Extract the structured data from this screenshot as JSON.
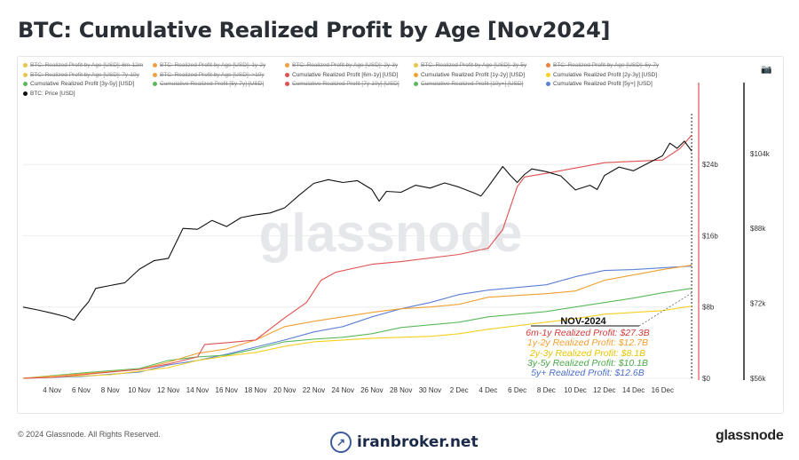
{
  "title": "BTC: Cumulative Realized Profit by Age [Nov2024]",
  "legend": [
    {
      "label": "BTC: Realized Profit by Age [USD]: 6m-12m",
      "color": "#e8c64a",
      "active": false
    },
    {
      "label": "BTC: Realized Profit by Age [USD]: 1y-2y",
      "color": "#f0a040",
      "active": false
    },
    {
      "label": "BTC: Realized Profit by Age [USD]: 2y-3y",
      "color": "#f0a040",
      "active": false
    },
    {
      "label": "BTC: Realized Profit by Age [USD]: 3y-5y",
      "color": "#e8c64a",
      "active": false
    },
    {
      "label": "BTC: Realized Profit by Age [USD]: 5y-7y",
      "color": "#f08040",
      "active": false
    },
    {
      "label": "BTC: Realized Profit by Age [USD]: 7y-10y",
      "color": "#e8c64a",
      "active": false
    },
    {
      "label": "BTC: Realized Profit by Age [USD]: >10y",
      "color": "#f0a040",
      "active": false
    },
    {
      "label": "Cumulative Realized Profit [6m-1y] [USD]",
      "color": "#e05050",
      "active": true
    },
    {
      "label": "Cumulative Realized Profit [1y-2y] [USD]",
      "color": "#f0a030",
      "active": true
    },
    {
      "label": "Cumulative Realized Profit [2y-3y] [USD]",
      "color": "#f5d020",
      "active": true
    },
    {
      "label": "Cumulative Realized Profit [3y-5y] [USD]",
      "color": "#5cb85c",
      "active": true
    },
    {
      "label": "Cumulative Realized Profit [5y-7y] [USD]",
      "color": "#5cb85c",
      "active": false
    },
    {
      "label": "Cumulative Realized Profit [7y-10y] [USD]",
      "color": "#e05050",
      "active": false
    },
    {
      "label": "Cumulative Realized Profit [10y+] [USD]",
      "color": "#5cb85c",
      "active": false
    },
    {
      "label": "Cumulative Realized Profit [5y+] [USD]",
      "color": "#5b7fd6",
      "active": true
    },
    {
      "label": "BTC: Price [USD]",
      "color": "#111111",
      "active": true
    }
  ],
  "annotation": {
    "title": "NOV-2024",
    "lines": [
      {
        "text": "6m-1y Realized Profit: $27.3B",
        "color": "#d33a3a"
      },
      {
        "text": "1y-2y Realized Profit: $12.7B",
        "color": "#f0a030"
      },
      {
        "text": "2y-3y Realized Profit: $8.1B",
        "color": "#e5c400"
      },
      {
        "text": "3y-5y Realized Profit: $10.1B",
        "color": "#4aa84a"
      },
      {
        "text": "5y+ Realized Profit: $12.6B",
        "color": "#4a6fc8"
      }
    ]
  },
  "footer": {
    "copyright": "© 2024 Glassnode. All Rights Reserved.",
    "brand": "iranbroker.net",
    "logo": "glassnode"
  },
  "watermark": "glassnode",
  "chart_data": {
    "type": "line",
    "x_tick_labels": [
      "4 Nov",
      "6 Nov",
      "8 Nov",
      "10 Nov",
      "12 Nov",
      "14 Nov",
      "16 Nov",
      "18 Nov",
      "20 Nov",
      "22 Nov",
      "24 Nov",
      "26 Nov",
      "28 Nov",
      "30 Nov",
      "2 Dec",
      "4 Dec",
      "6 Dec",
      "8 Dec",
      "10 Dec",
      "12 Dec",
      "14 Dec",
      "16 Dec"
    ],
    "x_days": [
      0,
      2,
      4,
      6,
      8,
      10,
      12,
      14,
      16,
      18,
      20,
      22,
      24,
      26,
      28,
      30,
      32,
      34,
      36,
      38,
      40,
      42
    ],
    "x_range": [
      -2,
      44.3
    ],
    "left_axis": {
      "ticks": [
        0,
        8,
        16,
        24
      ],
      "labels": [
        "$0",
        "$8b",
        "$16b",
        "$24b"
      ],
      "range": [
        0,
        30.5
      ]
    },
    "right_axis": {
      "ticks": [
        56,
        72,
        88,
        104
      ],
      "labels": [
        "$56k",
        "$72k",
        "$88k",
        "$104k"
      ],
      "range": [
        56,
        114
      ]
    },
    "series": [
      {
        "name": "Cumulative Realized Profit [6m-1y] [USD]",
        "color": "#e05050",
        "axis": "left",
        "points": [
          [
            -2,
            0
          ],
          [
            0,
            0.1
          ],
          [
            2,
            0.4
          ],
          [
            4,
            0.7
          ],
          [
            6,
            1.0
          ],
          [
            8,
            1.6
          ],
          [
            10,
            2.4
          ],
          [
            10.5,
            3.8
          ],
          [
            12,
            4.0
          ],
          [
            14,
            4.3
          ],
          [
            16,
            6.8
          ],
          [
            17.5,
            8.5
          ],
          [
            18.5,
            11.0
          ],
          [
            19.5,
            11.9
          ],
          [
            22,
            12.8
          ],
          [
            24,
            13.1
          ],
          [
            28,
            13.9
          ],
          [
            30,
            14.6
          ],
          [
            31,
            16.7
          ],
          [
            32,
            21.5
          ],
          [
            32.5,
            22.6
          ],
          [
            34,
            23.0
          ],
          [
            36,
            23.6
          ],
          [
            38,
            24.2
          ],
          [
            42,
            24.5
          ],
          [
            43.2,
            25.8
          ],
          [
            44,
            27.3
          ]
        ]
      },
      {
        "name": "Cumulative Realized Profit [1y-2y] [USD]",
        "color": "#f0a030",
        "axis": "left",
        "points": [
          [
            -2,
            0
          ],
          [
            2,
            0.5
          ],
          [
            6,
            1.0
          ],
          [
            8,
            1.8
          ],
          [
            10,
            2.8
          ],
          [
            12,
            3.3
          ],
          [
            14,
            4.3
          ],
          [
            16,
            5.8
          ],
          [
            18,
            6.4
          ],
          [
            20,
            6.9
          ],
          [
            22,
            7.4
          ],
          [
            24,
            7.8
          ],
          [
            26,
            8.0
          ],
          [
            28,
            8.3
          ],
          [
            30,
            9.1
          ],
          [
            34,
            9.5
          ],
          [
            36,
            9.8
          ],
          [
            38,
            11.0
          ],
          [
            42,
            12.2
          ],
          [
            44,
            12.7
          ]
        ]
      },
      {
        "name": "Cumulative Realized Profit [2y-3y] [USD]",
        "color": "#f5d020",
        "axis": "left",
        "points": [
          [
            -2,
            0
          ],
          [
            4,
            0.4
          ],
          [
            8,
            1.2
          ],
          [
            10,
            2.0
          ],
          [
            12,
            2.5
          ],
          [
            14,
            2.9
          ],
          [
            16,
            3.6
          ],
          [
            18,
            4.1
          ],
          [
            20,
            4.3
          ],
          [
            22,
            4.5
          ],
          [
            24,
            4.6
          ],
          [
            26,
            4.7
          ],
          [
            28,
            5.0
          ],
          [
            30,
            5.5
          ],
          [
            34,
            6.3
          ],
          [
            36,
            6.7
          ],
          [
            38,
            7.2
          ],
          [
            42,
            7.6
          ],
          [
            44,
            8.1
          ]
        ]
      },
      {
        "name": "Cumulative Realized Profit [3y-5y] [USD]",
        "color": "#5cb85c",
        "axis": "left",
        "points": [
          [
            -2,
            0
          ],
          [
            2,
            0.6
          ],
          [
            6,
            1.1
          ],
          [
            8,
            2.0
          ],
          [
            10,
            2.4
          ],
          [
            12,
            2.6
          ],
          [
            14,
            3.3
          ],
          [
            16,
            4.1
          ],
          [
            18,
            4.4
          ],
          [
            20,
            4.6
          ],
          [
            22,
            5.0
          ],
          [
            24,
            5.7
          ],
          [
            26,
            6.0
          ],
          [
            28,
            6.3
          ],
          [
            30,
            6.9
          ],
          [
            34,
            7.5
          ],
          [
            36,
            8.0
          ],
          [
            38,
            8.5
          ],
          [
            40,
            9.0
          ],
          [
            42,
            9.6
          ],
          [
            44,
            10.1
          ]
        ]
      },
      {
        "name": "Cumulative Realized Profit [5y+] [USD]",
        "color": "#5b7fd6",
        "axis": "left",
        "points": [
          [
            -2,
            0
          ],
          [
            2,
            0.2
          ],
          [
            6,
            0.7
          ],
          [
            8,
            1.5
          ],
          [
            10,
            2.0
          ],
          [
            12,
            2.7
          ],
          [
            14,
            3.5
          ],
          [
            16,
            4.3
          ],
          [
            18,
            5.2
          ],
          [
            20,
            5.8
          ],
          [
            22,
            6.9
          ],
          [
            24,
            7.8
          ],
          [
            26,
            8.5
          ],
          [
            28,
            9.4
          ],
          [
            30,
            9.9
          ],
          [
            32,
            10.2
          ],
          [
            34,
            10.5
          ],
          [
            36,
            11.4
          ],
          [
            38,
            12.1
          ],
          [
            40,
            12.2
          ],
          [
            42,
            12.4
          ],
          [
            44,
            12.6
          ]
        ]
      },
      {
        "name": "BTC: Price [USD]",
        "color": "#111111",
        "axis": "right",
        "points": [
          [
            -2,
            71.2
          ],
          [
            -1,
            70.6
          ],
          [
            0,
            69.9
          ],
          [
            1,
            69.1
          ],
          [
            1.5,
            68.4
          ],
          [
            2,
            70.5
          ],
          [
            2.5,
            72.3
          ],
          [
            3,
            75.2
          ],
          [
            4,
            75.8
          ],
          [
            5,
            76.4
          ],
          [
            6,
            79.3
          ],
          [
            7,
            81.1
          ],
          [
            8,
            81.6
          ],
          [
            9,
            88.0
          ],
          [
            10,
            87.8
          ],
          [
            11,
            89.7
          ],
          [
            12,
            88.4
          ],
          [
            13,
            90.3
          ],
          [
            14,
            90.9
          ],
          [
            15,
            91.3
          ],
          [
            16,
            92.4
          ],
          [
            17,
            95.1
          ],
          [
            18,
            97.6
          ],
          [
            19,
            98.4
          ],
          [
            20,
            97.8
          ],
          [
            21,
            98.2
          ],
          [
            22,
            96.3
          ],
          [
            22.5,
            93.8
          ],
          [
            23,
            95.9
          ],
          [
            24,
            95.7
          ],
          [
            25,
            97.2
          ],
          [
            26,
            96.6
          ],
          [
            27,
            97.7
          ],
          [
            28,
            96.8
          ],
          [
            29,
            95.6
          ],
          [
            29.5,
            94.9
          ],
          [
            30,
            96.9
          ],
          [
            31,
            101.2
          ],
          [
            31.5,
            99.4
          ],
          [
            32,
            97.8
          ],
          [
            32.5,
            99.5
          ],
          [
            33,
            100.7
          ],
          [
            34,
            100.1
          ],
          [
            35,
            99.2
          ],
          [
            36,
            96.2
          ],
          [
            37,
            97.2
          ],
          [
            37.5,
            96.3
          ],
          [
            38,
            99.3
          ],
          [
            39,
            101.1
          ],
          [
            40,
            100.3
          ],
          [
            41,
            101.9
          ],
          [
            42,
            103.5
          ],
          [
            42.5,
            106.2
          ],
          [
            43,
            105.1
          ],
          [
            43.5,
            106.6
          ],
          [
            44,
            104.5
          ]
        ]
      }
    ]
  }
}
